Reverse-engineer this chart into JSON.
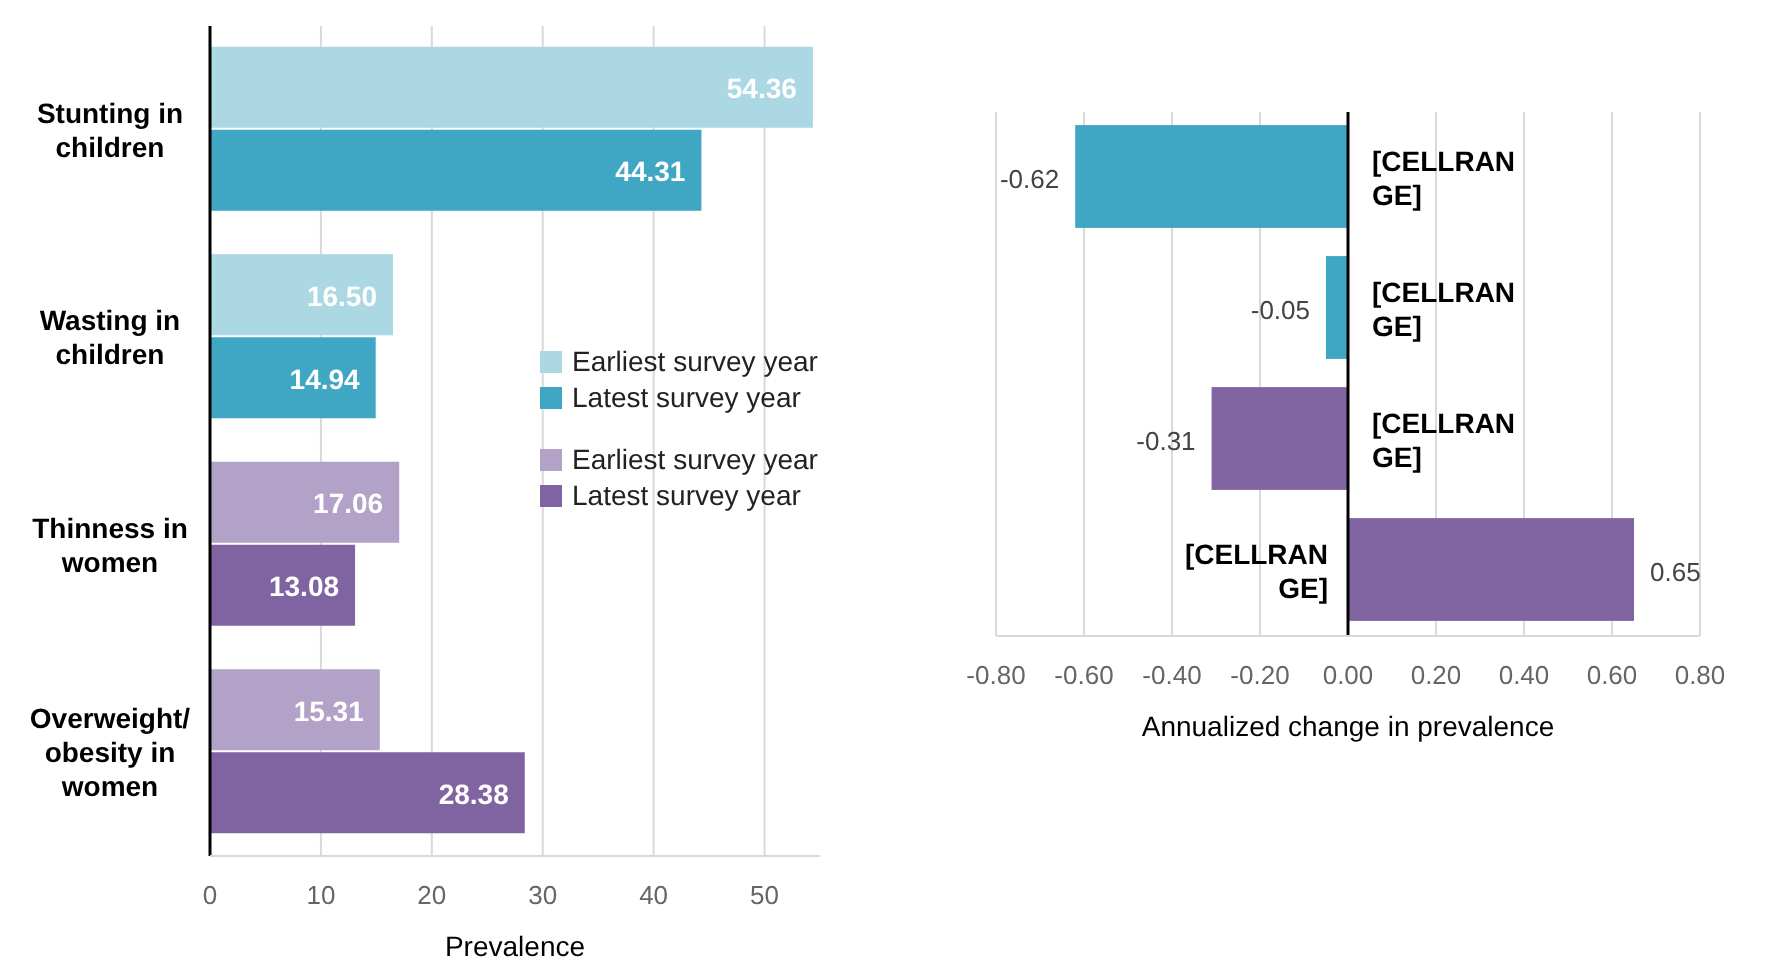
{
  "chart_data": [
    {
      "type": "bar",
      "orientation": "horizontal",
      "categories": [
        "Stunting in children",
        "Wasting in children",
        "Thinness in women",
        "Overweight/ obesity in women"
      ],
      "series": [
        {
          "name": "Earliest survey year",
          "color": "#acd8e3",
          "values": [
            54.36,
            16.5,
            null,
            null
          ],
          "value_labels": [
            "54.36",
            "16.50",
            null,
            null
          ]
        },
        {
          "name": "Latest survey year",
          "color": "#3fa6c3",
          "values": [
            44.31,
            14.94,
            null,
            null
          ],
          "value_labels": [
            "44.31",
            "14.94",
            null,
            null
          ]
        },
        {
          "name": "Earliest survey year",
          "color": "#b3a2c8",
          "values": [
            null,
            null,
            17.06,
            15.31
          ],
          "value_labels": [
            null,
            null,
            "17.06",
            "15.31"
          ]
        },
        {
          "name": "Latest survey year",
          "color": "#8064a2",
          "values": [
            null,
            null,
            13.08,
            28.38
          ],
          "value_labels": [
            null,
            null,
            "13.08",
            "28.38"
          ]
        }
      ],
      "xlim": [
        0,
        55
      ],
      "xticks": [
        0,
        10,
        20,
        30,
        40,
        50
      ],
      "xlabel": "Prevalence",
      "grid": "x",
      "legend": "right"
    },
    {
      "type": "bar",
      "orientation": "horizontal",
      "categories": [
        "[CELLRANGE]",
        "[CELLRANGE]",
        "[CELLRANGE]",
        "[CELLRANGE]"
      ],
      "values": [
        -0.62,
        -0.05,
        -0.31,
        0.65
      ],
      "colors": [
        "#3fa6c3",
        "#3fa6c3",
        "#8064a2",
        "#8064a2"
      ],
      "data_labels": true,
      "xlim": [
        -0.8,
        0.8
      ],
      "xticks": [
        {
          "value": -0.8,
          "label": "-0.80"
        },
        {
          "value": -0.6,
          "label": "-0.60"
        },
        {
          "value": -0.4,
          "label": "-0.40"
        },
        {
          "value": -0.2,
          "label": "-0.20"
        },
        {
          "value": 0,
          "label": "0.00"
        },
        {
          "value": 0.2,
          "label": "0.20"
        },
        {
          "value": 0.4,
          "label": "0.40"
        },
        {
          "value": 0.6,
          "label": "0.60"
        },
        {
          "value": 0.8,
          "label": "0.80"
        }
      ],
      "xlabel": "Annualized change in prevalence",
      "grid": "x"
    }
  ]
}
